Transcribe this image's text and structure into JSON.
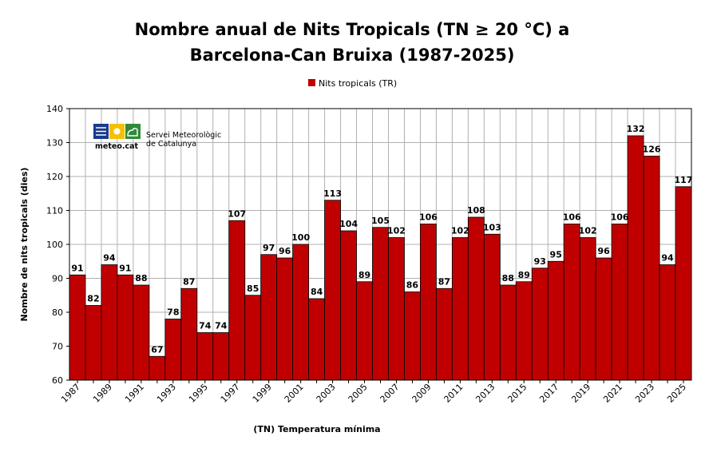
{
  "chart_data": {
    "type": "bar",
    "title_line1": "Nombre anual de Nits Tropicals (TN ≥ 20 °C) a",
    "title_line2": "Barcelona-Can Bruixa (1987-2025)",
    "xlabel": "(TN) Temperatura mínima",
    "ylabel": "Nombre de nits tropicals (dies)",
    "ylim": [
      60,
      140
    ],
    "yticks": [
      60,
      70,
      80,
      90,
      100,
      110,
      120,
      130,
      140
    ],
    "grid": true,
    "legend_position": "top-center",
    "bar_color": "#c00000",
    "categories": [
      "1987",
      "1988",
      "1989",
      "1990",
      "1991",
      "1992",
      "1993",
      "1994",
      "1995",
      "1996",
      "1997",
      "1998",
      "1999",
      "2000",
      "2001",
      "2002",
      "2003",
      "2004",
      "2005",
      "2006",
      "2007",
      "2008",
      "2009",
      "2010",
      "2011",
      "2012",
      "2013",
      "2014",
      "2015",
      "2016",
      "2017",
      "2018",
      "2019",
      "2020",
      "2021",
      "2022",
      "2023",
      "2024",
      "2025"
    ],
    "xtick_labels": [
      "1987",
      "1989",
      "1991",
      "1993",
      "1995",
      "1997",
      "1999",
      "2001",
      "2003",
      "2005",
      "2007",
      "2009",
      "2011",
      "2013",
      "2015",
      "2017",
      "2019",
      "2021",
      "2023",
      "2025"
    ],
    "series": [
      {
        "name": "Nits tropicals (TR)",
        "values": [
          91,
          82,
          94,
          91,
          88,
          67,
          78,
          87,
          74,
          74,
          107,
          85,
          97,
          96,
          100,
          84,
          113,
          104,
          89,
          105,
          102,
          86,
          106,
          87,
          102,
          108,
          103,
          88,
          89,
          93,
          95,
          106,
          102,
          96,
          106,
          132,
          126,
          94,
          117
        ]
      }
    ]
  },
  "logo": {
    "brand": "meteo.cat",
    "org_line1": "Servei Meteorològic",
    "org_line2": "de Catalunya"
  }
}
